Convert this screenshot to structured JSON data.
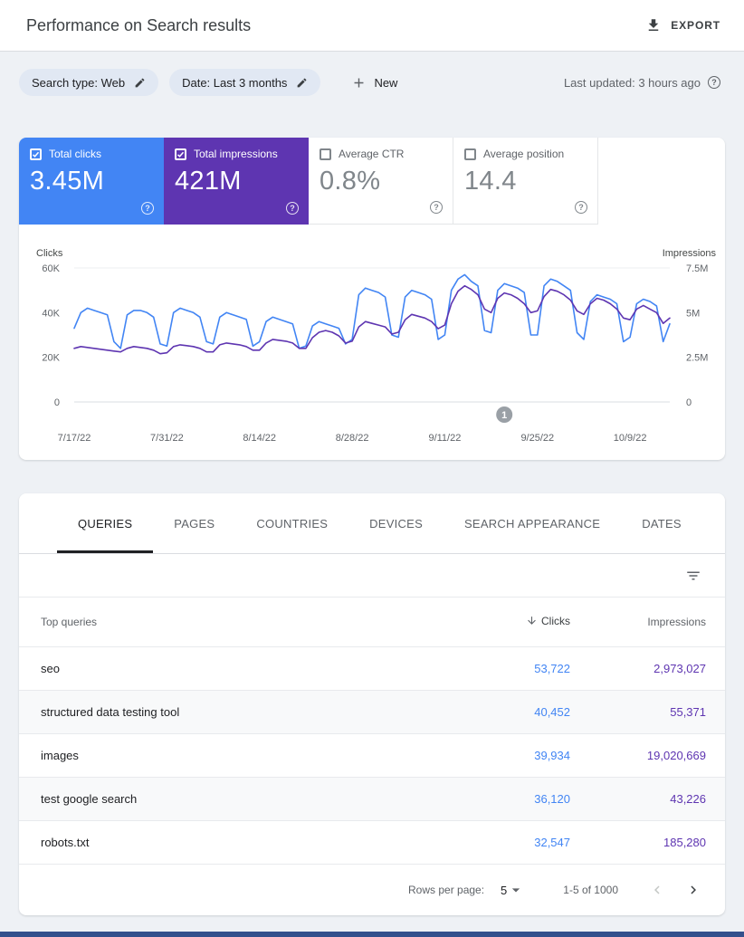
{
  "header": {
    "title": "Performance on Search results",
    "export_label": "EXPORT"
  },
  "filters": {
    "chips": [
      {
        "label": "Search type: Web"
      },
      {
        "label": "Date: Last 3 months"
      }
    ],
    "new_label": "New",
    "last_updated": "Last updated: 3 hours ago"
  },
  "metrics": [
    {
      "id": "total-clicks",
      "label": "Total clicks",
      "value": "3.45M",
      "selected": true,
      "bg": "#4285f4"
    },
    {
      "id": "total-impressions",
      "label": "Total impressions",
      "value": "421M",
      "selected": true,
      "bg": "#5e35b1"
    },
    {
      "id": "average-ctr",
      "label": "Average CTR",
      "value": "0.8%",
      "selected": false,
      "bg": "#ffffff"
    },
    {
      "id": "average-position",
      "label": "Average position",
      "value": "14.4",
      "selected": false,
      "bg": "#ffffff"
    }
  ],
  "chart_data": {
    "type": "line",
    "left_axis": {
      "label": "Clicks",
      "ticks": [
        "60K",
        "40K",
        "20K",
        "0"
      ],
      "max": 60,
      "unit": "K"
    },
    "right_axis": {
      "label": "Impressions",
      "ticks": [
        "7.5M",
        "5M",
        "2.5M",
        "0"
      ],
      "max": 7.5,
      "unit": "M"
    },
    "x_labels": [
      "7/17/22",
      "7/31/22",
      "8/14/22",
      "8/28/22",
      "9/11/22",
      "9/25/22",
      "10/9/22"
    ],
    "x_label_indices": [
      0,
      14,
      28,
      42,
      56,
      70,
      84
    ],
    "grid": "top-and-zero-only",
    "series": [
      {
        "name": "Clicks",
        "axis": "left",
        "color": "#4285f4",
        "values": [
          33,
          40,
          42,
          41,
          40,
          39,
          27,
          24,
          39,
          41,
          41,
          40,
          38,
          26,
          25,
          40,
          42,
          41,
          40,
          38,
          27,
          26,
          38,
          40,
          39,
          38,
          37,
          25,
          27,
          36,
          38,
          37,
          36,
          35,
          24,
          25,
          34,
          36,
          35,
          34,
          33,
          26,
          28,
          48,
          51,
          50,
          49,
          47,
          30,
          29,
          47,
          50,
          49,
          48,
          46,
          28,
          30,
          50,
          55,
          57,
          54,
          52,
          32,
          31,
          50,
          53,
          52,
          51,
          49,
          30,
          30,
          52,
          55,
          54,
          52,
          50,
          31,
          28,
          45,
          48,
          47,
          46,
          44,
          27,
          29,
          44,
          46,
          45,
          43,
          27,
          35
        ]
      },
      {
        "name": "Impressions",
        "axis": "right",
        "color": "#5e35b1",
        "values": [
          3.0,
          3.1,
          3.05,
          3.0,
          2.95,
          2.9,
          2.85,
          2.8,
          3.0,
          3.1,
          3.05,
          3.0,
          2.9,
          2.7,
          2.75,
          3.1,
          3.2,
          3.15,
          3.1,
          3.0,
          2.8,
          2.8,
          3.2,
          3.3,
          3.25,
          3.2,
          3.1,
          2.9,
          2.9,
          3.3,
          3.5,
          3.45,
          3.4,
          3.3,
          3.0,
          3.0,
          3.6,
          3.9,
          4.0,
          3.9,
          3.7,
          3.3,
          3.4,
          4.2,
          4.5,
          4.4,
          4.3,
          4.2,
          3.8,
          3.9,
          4.6,
          4.9,
          4.8,
          4.7,
          4.5,
          4.1,
          4.3,
          5.5,
          6.2,
          6.5,
          6.3,
          6.0,
          5.2,
          5.0,
          5.8,
          6.1,
          6.0,
          5.8,
          5.5,
          5.0,
          5.1,
          5.9,
          6.3,
          6.2,
          6.0,
          5.7,
          5.1,
          4.9,
          5.5,
          5.8,
          5.7,
          5.5,
          5.2,
          4.7,
          4.6,
          5.2,
          5.4,
          5.2,
          5.0,
          4.4,
          4.7
        ]
      }
    ],
    "marker": {
      "label": "1",
      "index": 65
    }
  },
  "table": {
    "tabs": [
      {
        "label": "QUERIES",
        "active": true
      },
      {
        "label": "PAGES",
        "active": false
      },
      {
        "label": "COUNTRIES",
        "active": false
      },
      {
        "label": "DEVICES",
        "active": false
      },
      {
        "label": "SEARCH APPEARANCE",
        "active": false
      },
      {
        "label": "DATES",
        "active": false
      }
    ],
    "columns": {
      "query_header": "Top queries",
      "clicks_header": "Clicks",
      "impressions_header": "Impressions"
    },
    "rows": [
      {
        "query": "seo",
        "clicks": "53,722",
        "impressions": "2,973,027"
      },
      {
        "query": "structured data testing tool",
        "clicks": "40,452",
        "impressions": "55,371"
      },
      {
        "query": "images",
        "clicks": "39,934",
        "impressions": "19,020,669"
      },
      {
        "query": "test google search",
        "clicks": "36,120",
        "impressions": "43,226"
      },
      {
        "query": "robots.txt",
        "clicks": "32,547",
        "impressions": "185,280"
      }
    ],
    "pagination": {
      "rows_per_page_label": "Rows per page:",
      "rows_per_page_value": "5",
      "range_label": "1-5 of 1000"
    }
  },
  "colors": {
    "clicks": "#4285f4",
    "impressions": "#5e35b1",
    "bottom_bar": "#33508c"
  }
}
